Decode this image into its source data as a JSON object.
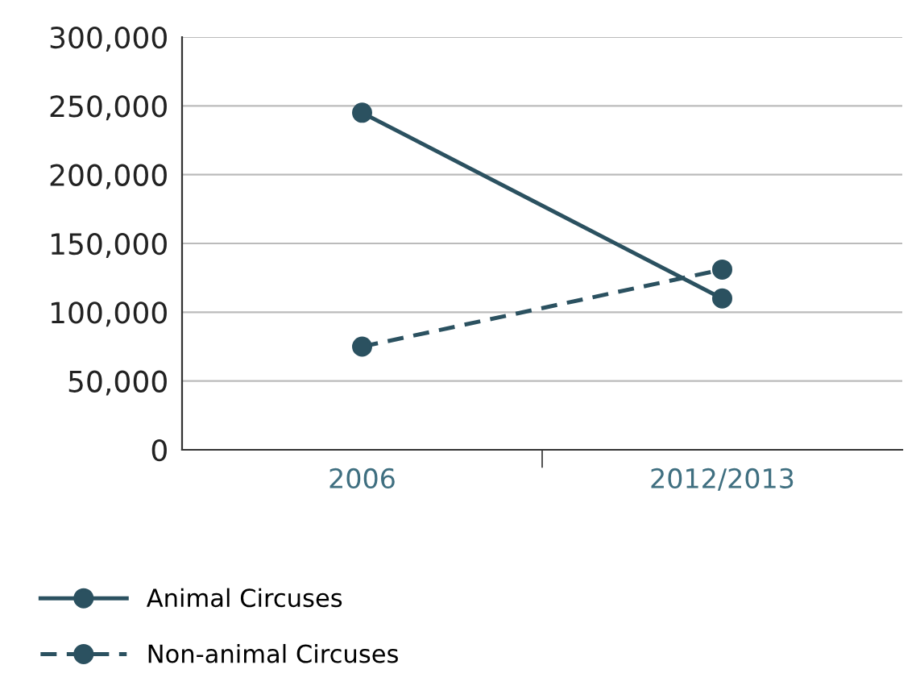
{
  "chart_data": {
    "type": "line",
    "categories": [
      "2006",
      "2012/2013"
    ],
    "series": [
      {
        "name": "Animal Circuses",
        "color": "#2b5160",
        "values": [
          245000,
          110000
        ],
        "line_style": "solid"
      },
      {
        "name": "Non-animal Circuses",
        "color": "#2b5160",
        "values": [
          75000,
          131000
        ],
        "line_style": "dashed"
      }
    ],
    "ylim": [
      0,
      300000
    ],
    "yticks": [
      {
        "value": 0,
        "label": "0"
      },
      {
        "value": 50000,
        "label": "50,000"
      },
      {
        "value": 100000,
        "label": "100,000"
      },
      {
        "value": 150000,
        "label": "150,000"
      },
      {
        "value": 200000,
        "label": "200,000"
      },
      {
        "value": 250000,
        "label": "250,000"
      },
      {
        "value": 300000,
        "label": "300,000"
      }
    ],
    "grid": "y",
    "legend": "bottom left",
    "marker": "circle"
  }
}
